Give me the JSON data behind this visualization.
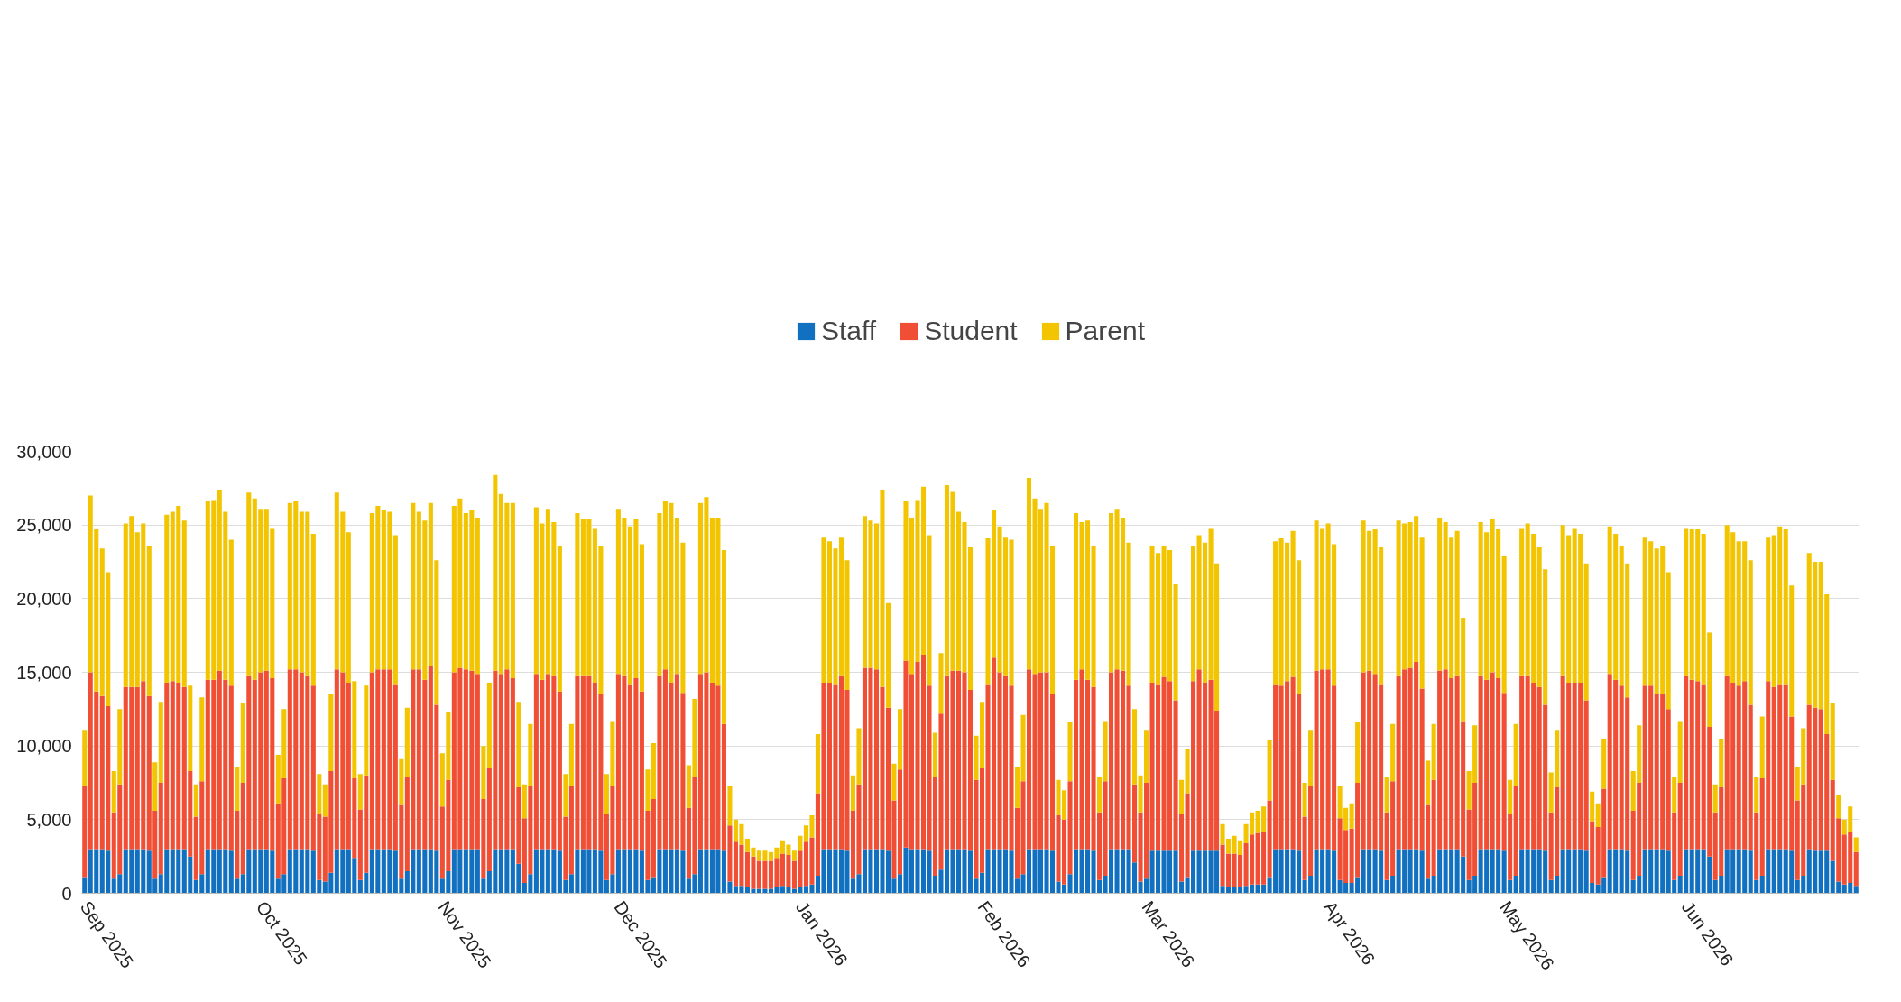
{
  "chart_data": {
    "type": "bar",
    "stacked": true,
    "grid": "y",
    "legend": "top",
    "x": [
      "2025-09-01",
      "2025-09-02",
      "2025-09-03",
      "2025-09-04",
      "2025-09-05",
      "2025-09-06",
      "2025-09-07",
      "2025-09-08",
      "2025-09-09",
      "2025-09-10",
      "2025-09-11",
      "2025-09-12",
      "2025-09-13",
      "2025-09-14",
      "2025-09-15",
      "2025-09-16",
      "2025-09-17",
      "2025-09-18",
      "2025-09-19",
      "2025-09-20",
      "2025-09-21",
      "2025-09-22",
      "2025-09-23",
      "2025-09-24",
      "2025-09-25",
      "2025-09-26",
      "2025-09-27",
      "2025-09-28",
      "2025-09-29",
      "2025-09-30",
      "2025-10-01",
      "2025-10-02",
      "2025-10-03",
      "2025-10-04",
      "2025-10-05",
      "2025-10-06",
      "2025-10-07",
      "2025-10-08",
      "2025-10-09",
      "2025-10-10",
      "2025-10-11",
      "2025-10-12",
      "2025-10-13",
      "2025-10-14",
      "2025-10-15",
      "2025-10-16",
      "2025-10-17",
      "2025-10-18",
      "2025-10-19",
      "2025-10-20",
      "2025-10-21",
      "2025-10-22",
      "2025-10-23",
      "2025-10-24",
      "2025-10-25",
      "2025-10-26",
      "2025-10-27",
      "2025-10-28",
      "2025-10-29",
      "2025-10-30",
      "2025-10-31",
      "2025-11-01",
      "2025-11-02",
      "2025-11-03",
      "2025-11-04",
      "2025-11-05",
      "2025-11-06",
      "2025-11-07",
      "2025-11-08",
      "2025-11-09",
      "2025-11-10",
      "2025-11-11",
      "2025-11-12",
      "2025-11-13",
      "2025-11-14",
      "2025-11-15",
      "2025-11-16",
      "2025-11-17",
      "2025-11-18",
      "2025-11-19",
      "2025-11-20",
      "2025-11-21",
      "2025-11-22",
      "2025-11-23",
      "2025-11-24",
      "2025-11-25",
      "2025-11-26",
      "2025-11-27",
      "2025-11-28",
      "2025-11-29",
      "2025-11-30",
      "2025-12-01",
      "2025-12-02",
      "2025-12-03",
      "2025-12-04",
      "2025-12-05",
      "2025-12-06",
      "2025-12-07",
      "2025-12-08",
      "2025-12-09",
      "2025-12-10",
      "2025-12-11",
      "2025-12-12",
      "2025-12-13",
      "2025-12-14",
      "2025-12-15",
      "2025-12-16",
      "2025-12-17",
      "2025-12-18",
      "2025-12-19",
      "2025-12-20",
      "2025-12-21",
      "2025-12-22",
      "2025-12-23",
      "2025-12-24",
      "2025-12-25",
      "2025-12-26",
      "2025-12-27",
      "2025-12-28",
      "2025-12-29",
      "2025-12-30",
      "2025-12-31",
      "2026-01-01",
      "2026-01-02",
      "2026-01-03",
      "2026-01-04",
      "2026-01-05",
      "2026-01-06",
      "2026-01-07",
      "2026-01-08",
      "2026-01-09",
      "2026-01-10",
      "2026-01-11",
      "2026-01-12",
      "2026-01-13",
      "2026-01-14",
      "2026-01-15",
      "2026-01-16",
      "2026-01-17",
      "2026-01-18",
      "2026-01-19",
      "2026-01-20",
      "2026-01-21",
      "2026-01-22",
      "2026-01-23",
      "2026-01-24",
      "2026-01-25",
      "2026-01-26",
      "2026-01-27",
      "2026-01-28",
      "2026-01-29",
      "2026-01-30",
      "2026-01-31",
      "2026-02-01",
      "2026-02-02",
      "2026-02-03",
      "2026-02-04",
      "2026-02-05",
      "2026-02-06",
      "2026-02-07",
      "2026-02-08",
      "2026-02-09",
      "2026-02-10",
      "2026-02-11",
      "2026-02-12",
      "2026-02-13",
      "2026-02-14",
      "2026-02-15",
      "2026-02-16",
      "2026-02-17",
      "2026-02-18",
      "2026-02-19",
      "2026-02-20",
      "2026-02-21",
      "2026-02-22",
      "2026-02-23",
      "2026-02-24",
      "2026-02-25",
      "2026-02-26",
      "2026-02-27",
      "2026-02-28",
      "2026-03-01",
      "2026-03-02",
      "2026-03-03",
      "2026-03-04",
      "2026-03-05",
      "2026-03-06",
      "2026-03-07",
      "2026-03-08",
      "2026-03-09",
      "2026-03-10",
      "2026-03-11",
      "2026-03-12",
      "2026-03-13",
      "2026-03-14",
      "2026-03-15",
      "2026-03-16",
      "2026-03-17",
      "2026-03-18",
      "2026-03-19",
      "2026-03-20",
      "2026-03-21",
      "2026-03-22",
      "2026-03-23",
      "2026-03-24",
      "2026-03-25",
      "2026-03-26",
      "2026-03-27",
      "2026-03-28",
      "2026-03-29",
      "2026-03-30",
      "2026-03-31",
      "2026-04-01",
      "2026-04-02",
      "2026-04-03",
      "2026-04-04",
      "2026-04-05",
      "2026-04-06",
      "2026-04-07",
      "2026-04-08",
      "2026-04-09",
      "2026-04-10",
      "2026-04-11",
      "2026-04-12",
      "2026-04-13",
      "2026-04-14",
      "2026-04-15",
      "2026-04-16",
      "2026-04-17",
      "2026-04-18",
      "2026-04-19",
      "2026-04-20",
      "2026-04-21",
      "2026-04-22",
      "2026-04-23",
      "2026-04-24",
      "2026-04-25",
      "2026-04-26",
      "2026-04-27",
      "2026-04-28",
      "2026-04-29",
      "2026-04-30",
      "2026-05-01",
      "2026-05-02",
      "2026-05-03",
      "2026-05-04",
      "2026-05-05",
      "2026-05-06",
      "2026-05-07",
      "2026-05-08",
      "2026-05-09",
      "2026-05-10",
      "2026-05-11",
      "2026-05-12",
      "2026-05-13",
      "2026-05-14",
      "2026-05-15",
      "2026-05-16",
      "2026-05-17",
      "2026-05-18",
      "2026-05-19",
      "2026-05-20",
      "2026-05-21",
      "2026-05-22",
      "2026-05-23",
      "2026-05-24",
      "2026-05-25",
      "2026-05-26",
      "2026-05-27",
      "2026-05-28",
      "2026-05-29",
      "2026-05-30",
      "2026-05-31",
      "2026-06-01",
      "2026-06-02",
      "2026-06-03",
      "2026-06-04",
      "2026-06-05",
      "2026-06-06",
      "2026-06-07",
      "2026-06-08",
      "2026-06-09",
      "2026-06-10",
      "2026-06-11",
      "2026-06-12",
      "2026-06-13",
      "2026-06-14",
      "2026-06-15",
      "2026-06-16",
      "2026-06-17",
      "2026-06-18",
      "2026-06-19",
      "2026-06-20",
      "2026-06-21",
      "2026-06-22",
      "2026-06-23",
      "2026-06-24",
      "2026-06-25",
      "2026-06-26",
      "2026-06-27",
      "2026-06-28",
      "2026-06-29",
      "2026-06-30"
    ],
    "xlim": [
      "2025-08-31T12:00",
      "2026-06-30T12:00"
    ],
    "xticks": [
      {
        "value": "2025-09-01",
        "label": "Sep 2025"
      },
      {
        "value": "2025-10-01",
        "label": "Oct 2025"
      },
      {
        "value": "2025-11-01",
        "label": "Nov 2025"
      },
      {
        "value": "2025-12-01",
        "label": "Dec 2025"
      },
      {
        "value": "2026-01-01",
        "label": "Jan 2026"
      },
      {
        "value": "2026-02-01",
        "label": "Feb 2026"
      },
      {
        "value": "2026-03-01",
        "label": "Mar 2026"
      },
      {
        "value": "2026-04-01",
        "label": "Apr 2026"
      },
      {
        "value": "2026-05-01",
        "label": "May 2026"
      },
      {
        "value": "2026-06-01",
        "label": "Jun 2026"
      }
    ],
    "ylim": [
      0,
      30000
    ],
    "yticks": [
      0,
      {
        "value": 5000,
        "label": "5,000"
      },
      {
        "value": 10000,
        "label": "10,000"
      },
      {
        "value": 15000,
        "label": "15,000"
      },
      {
        "value": 20000,
        "label": "20,000"
      },
      {
        "value": 25000,
        "label": "25,000"
      },
      {
        "value": 30000,
        "label": "30,000"
      }
    ],
    "series": [
      {
        "name": "Staff",
        "color": "#1170bf",
        "values": [
          1100,
          3000,
          3000,
          3000,
          2900,
          1000,
          1300,
          3000,
          3000,
          3000,
          3000,
          2900,
          1000,
          1300,
          3000,
          3000,
          3000,
          3000,
          2500,
          900,
          1300,
          3000,
          3000,
          3000,
          3000,
          2900,
          1000,
          1300,
          3000,
          3000,
          3000,
          3000,
          2900,
          1000,
          1300,
          3000,
          3000,
          3000,
          3000,
          2900,
          900,
          800,
          1400,
          3000,
          3000,
          3000,
          2400,
          900,
          1400,
          3000,
          3000,
          3000,
          3000,
          2900,
          1000,
          1500,
          3000,
          3000,
          3000,
          3000,
          2900,
          1000,
          1500,
          3000,
          3000,
          3000,
          3000,
          3000,
          1000,
          1500,
          3000,
          3000,
          3000,
          3000,
          2000,
          700,
          1300,
          3000,
          3000,
          3000,
          3000,
          2900,
          900,
          1300,
          3000,
          3000,
          3000,
          3000,
          2900,
          900,
          1300,
          3000,
          3000,
          3000,
          3000,
          2900,
          900,
          1100,
          3000,
          3000,
          3000,
          3000,
          2900,
          1000,
          1300,
          3000,
          3000,
          3000,
          3000,
          2900,
          800,
          500,
          500,
          400,
          300,
          300,
          300,
          300,
          400,
          500,
          400,
          300,
          400,
          500,
          600,
          1200,
          3000,
          3000,
          3000,
          3000,
          2900,
          1000,
          1300,
          3000,
          3000,
          3000,
          3000,
          2900,
          1000,
          1300,
          3100,
          3000,
          3000,
          3000,
          2900,
          1200,
          1600,
          3000,
          3000,
          3000,
          3000,
          2900,
          1000,
          1400,
          3000,
          3000,
          3000,
          3000,
          2900,
          1000,
          1300,
          3000,
          3000,
          3000,
          3000,
          2900,
          800,
          600,
          1300,
          3000,
          3000,
          3000,
          2900,
          900,
          1200,
          3000,
          3000,
          3000,
          3000,
          2100,
          800,
          1000,
          2900,
          2900,
          2900,
          2900,
          2900,
          800,
          1100,
          2900,
          2900,
          2900,
          2900,
          2900,
          500,
          400,
          400,
          400,
          500,
          600,
          600,
          600,
          1100,
          3000,
          3000,
          3000,
          3000,
          2900,
          900,
          1200,
          3000,
          3000,
          3000,
          2900,
          900,
          700,
          700,
          1100,
          3000,
          3000,
          3000,
          2900,
          900,
          1200,
          3000,
          3000,
          3000,
          3000,
          2900,
          1000,
          1200,
          3000,
          3000,
          3000,
          3000,
          2500,
          900,
          1200,
          3000,
          3000,
          3000,
          3000,
          2900,
          900,
          1200,
          3000,
          3000,
          3000,
          3000,
          2900,
          900,
          1200,
          3000,
          3000,
          3000,
          3000,
          2900,
          700,
          600,
          1100,
          3000,
          3000,
          3000,
          2900,
          900,
          1200,
          3000,
          3000,
          3000,
          3000,
          2900,
          900,
          1200,
          3000,
          3000,
          3000,
          3000,
          2500,
          900,
          1200,
          3000,
          3000,
          3000,
          3000,
          2900,
          900,
          1200,
          3000,
          3000,
          3000,
          3000,
          2900,
          900,
          1200,
          3000,
          2900,
          2900,
          2900,
          2200,
          800,
          600,
          700,
          500
        ]
      },
      {
        "name": "Student",
        "color": "#f04f35",
        "values": [
          6200,
          12000,
          10700,
          10400,
          9800,
          4500,
          6100,
          11000,
          11000,
          11000,
          11400,
          10500,
          4600,
          6200,
          11300,
          11400,
          11300,
          11000,
          5800,
          4300,
          6300,
          11500,
          11500,
          12100,
          11500,
          11200,
          4600,
          6200,
          11800,
          11500,
          12000,
          12100,
          11700,
          5100,
          6500,
          12200,
          12200,
          12000,
          11800,
          11200,
          4500,
          4400,
          6900,
          12200,
          12000,
          11300,
          5400,
          4800,
          6600,
          12000,
          12200,
          12200,
          12200,
          11300,
          5000,
          6400,
          12200,
          12200,
          11500,
          12400,
          9900,
          4900,
          6200,
          12000,
          12300,
          12200,
          12100,
          11900,
          5400,
          7000,
          12100,
          11900,
          12200,
          11600,
          5200,
          4400,
          6000,
          11900,
          11500,
          11900,
          11800,
          10800,
          4300,
          6000,
          11800,
          11800,
          11800,
          11300,
          10600,
          4500,
          6000,
          11900,
          11800,
          11200,
          11600,
          10800,
          4700,
          5300,
          11800,
          12200,
          11300,
          11900,
          10700,
          4800,
          6600,
          11900,
          12000,
          11300,
          11100,
          8600,
          3800,
          3000,
          2800,
          2400,
          2200,
          1900,
          1900,
          1900,
          2000,
          2200,
          2200,
          1900,
          2500,
          3000,
          3200,
          5600,
          11300,
          11300,
          11200,
          11800,
          10900,
          4600,
          6100,
          12300,
          12300,
          12200,
          11000,
          9700,
          5300,
          7100,
          12700,
          11900,
          12700,
          13200,
          11200,
          6700,
          10600,
          11800,
          12100,
          12100,
          12000,
          10900,
          6700,
          7100,
          11200,
          13000,
          12000,
          11800,
          11200,
          4800,
          6300,
          12200,
          11900,
          12000,
          12000,
          10600,
          4500,
          4400,
          6300,
          11500,
          12200,
          11500,
          11100,
          4600,
          6400,
          12000,
          12200,
          12100,
          11100,
          5300,
          4700,
          6500,
          11400,
          11300,
          11800,
          11500,
          10200,
          4600,
          5700,
          11500,
          12300,
          11400,
          11600,
          9500,
          2800,
          2300,
          2300,
          2200,
          2900,
          3400,
          3500,
          3600,
          5200,
          11200,
          11100,
          11400,
          11700,
          10600,
          4300,
          6100,
          12100,
          12200,
          12200,
          11200,
          4200,
          3600,
          3700,
          6400,
          12000,
          12100,
          11900,
          11300,
          4600,
          6400,
          11800,
          12200,
          12300,
          12700,
          11000,
          5000,
          6500,
          12100,
          12200,
          11600,
          11800,
          9200,
          4800,
          6300,
          11800,
          11500,
          12000,
          11600,
          10700,
          4500,
          6100,
          11800,
          11800,
          11300,
          11000,
          9900,
          4600,
          6000,
          11800,
          11300,
          11300,
          11300,
          10200,
          4200,
          3900,
          6000,
          11900,
          11500,
          11100,
          10400,
          4700,
          6300,
          11100,
          11100,
          10500,
          10500,
          9600,
          4600,
          6300,
          11800,
          11500,
          11400,
          11200,
          8800,
          4600,
          6000,
          11800,
          11300,
          11100,
          11400,
          9900,
          4600,
          6600,
          11400,
          11000,
          11200,
          11200,
          9100,
          5400,
          6200,
          9800,
          9700,
          9600,
          7900,
          5500,
          4300,
          3400,
          3500,
          2300
        ]
      },
      {
        "name": "Parent",
        "color": "#f2c500",
        "values": [
          3800,
          12000,
          11000,
          10000,
          9100,
          2800,
          5100,
          11100,
          11600,
          10500,
          10700,
          10200,
          3300,
          5500,
          11400,
          11500,
          12000,
          11300,
          5800,
          2200,
          5700,
          12100,
          12200,
          12300,
          11400,
          9900,
          3000,
          5400,
          12400,
          12300,
          11100,
          11000,
          10200,
          3300,
          4700,
          11300,
          11400,
          10900,
          11100,
          10300,
          2700,
          2200,
          5200,
          12000,
          10900,
          10200,
          6600,
          2400,
          6100,
          10800,
          11100,
          10800,
          10700,
          10100,
          3100,
          4700,
          11300,
          10700,
          10800,
          11100,
          9800,
          3600,
          4600,
          11300,
          11500,
          10600,
          10900,
          10600,
          3600,
          5800,
          13300,
          12200,
          11300,
          11900,
          5800,
          2300,
          4200,
          11300,
          10600,
          11200,
          10400,
          9900,
          2900,
          4200,
          11000,
          10600,
          10600,
          10500,
          10100,
          2700,
          4400,
          11200,
          10700,
          10700,
          10800,
          10000,
          2800,
          3800,
          11000,
          11400,
          12200,
          10600,
          10200,
          2900,
          5300,
          11600,
          11900,
          11200,
          11400,
          11800,
          2700,
          1500,
          1400,
          900,
          600,
          700,
          700,
          600,
          700,
          900,
          700,
          700,
          1000,
          1100,
          1500,
          4000,
          9900,
          9600,
          9200,
          9400,
          8800,
          2400,
          3800,
          10300,
          10000,
          9900,
          13400,
          7100,
          2500,
          4100,
          10800,
          10600,
          11000,
          11400,
          10200,
          3000,
          4100,
          12900,
          12200,
          10800,
          10200,
          9700,
          3000,
          4500,
          9900,
          10000,
          9900,
          9400,
          9900,
          2800,
          4500,
          13000,
          11900,
          11100,
          11500,
          10100,
          2400,
          2000,
          4000,
          11300,
          10000,
          10800,
          9600,
          2400,
          4100,
          10800,
          10900,
          10400,
          9700,
          5100,
          2500,
          3600,
          9300,
          8900,
          8900,
          8900,
          7900,
          2300,
          3000,
          9200,
          9100,
          9500,
          10300,
          10000,
          1400,
          1000,
          1200,
          1000,
          1300,
          1500,
          1500,
          1700,
          4100,
          9700,
          10000,
          9400,
          9900,
          9100,
          2300,
          3800,
          10200,
          9600,
          9900,
          9600,
          2200,
          1500,
          1700,
          4100,
          10300,
          9500,
          9800,
          9300,
          2400,
          3900,
          10500,
          9900,
          9900,
          9900,
          10300,
          3000,
          3800,
          10400,
          10000,
          9600,
          9800,
          7000,
          2600,
          3900,
          10400,
          10000,
          10400,
          10100,
          9300,
          2300,
          4200,
          10000,
          10300,
          10100,
          9500,
          9200,
          2700,
          3900,
          10200,
          10000,
          10500,
          10100,
          9300,
          2000,
          1600,
          3400,
          10000,
          9900,
          9500,
          9100,
          2700,
          3900,
          10100,
          9800,
          9900,
          10100,
          9300,
          2400,
          4200,
          10000,
          10200,
          10300,
          10200,
          6400,
          1900,
          3300,
          10200,
          10200,
          9800,
          9500,
          9800,
          2400,
          4200,
          9800,
          10300,
          10700,
          10500,
          8900,
          2300,
          3800,
          10300,
          9900,
          10000,
          9500,
          5200,
          1600,
          1000,
          1700,
          1000
        ]
      }
    ]
  }
}
